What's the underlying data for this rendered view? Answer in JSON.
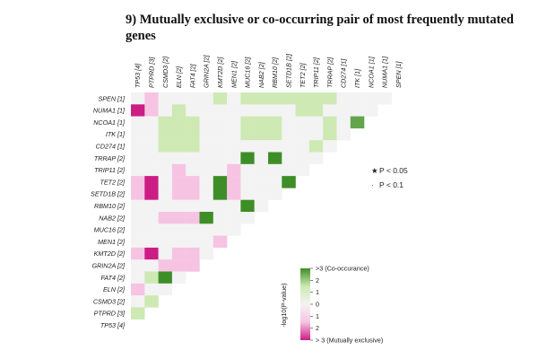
{
  "title": "9) Mutually exclusive or co-occurring pair of  most frequently mutated genes",
  "chart_data": {
    "type": "heatmap",
    "title": "9) Mutually exclusive or co-occurring pair of  most frequently mutated genes",
    "columns": [
      "TP53 [4]",
      "PTPRD [3]",
      "CSMD3 [2]",
      "ELN [2]",
      "FAT4 [2]",
      "GRIN2A [2]",
      "KMT2D [2]",
      "MEN1 [2]",
      "MUC16 [2]",
      "NAB2 [2]",
      "RBM10 [2]",
      "SETD1B [2]",
      "TET2 [2]",
      "TRIP11 [2]",
      "TRRAP [2]",
      "CD274 [1]",
      "ITK [1]",
      "NCOA1 [1]",
      "NUMA1 [1]",
      "SPEN [1]"
    ],
    "rows": [
      "SPEN [1]",
      "NUMA1 [1]",
      "NCOA1 [1]",
      "ITK [1]",
      "CD274 [1]",
      "TRRAP [2]",
      "TRIP11 [2]",
      "TET2 [2]",
      "SETD1B [2]",
      "RBM10 [2]",
      "NAB2 [2]",
      "MUC16 [2]",
      "MEN1 [2]",
      "KMT2D [2]",
      "GRIN2A [2]",
      "FAT4 [2]",
      "ELN [2]",
      "CSMD3 [2]",
      "PTPRD [3]",
      "TP53 [4]"
    ],
    "cells": [
      [
        0,
        0,
        0
      ],
      [
        0,
        1,
        -1
      ],
      [
        0,
        2,
        0
      ],
      [
        0,
        3,
        0
      ],
      [
        0,
        4,
        0
      ],
      [
        0,
        5,
        0
      ],
      [
        0,
        6,
        1
      ],
      [
        0,
        7,
        0
      ],
      [
        0,
        8,
        1
      ],
      [
        0,
        9,
        1
      ],
      [
        0,
        10,
        1
      ],
      [
        0,
        11,
        1
      ],
      [
        0,
        12,
        1
      ],
      [
        0,
        13,
        1
      ],
      [
        0,
        14,
        1
      ],
      [
        0,
        15,
        0
      ],
      [
        0,
        16,
        0
      ],
      [
        0,
        17,
        0
      ],
      [
        0,
        18,
        0
      ],
      [
        1,
        0,
        -4
      ],
      [
        1,
        1,
        -1
      ],
      [
        1,
        2,
        0
      ],
      [
        1,
        3,
        1
      ],
      [
        1,
        4,
        0
      ],
      [
        1,
        5,
        0
      ],
      [
        1,
        6,
        0
      ],
      [
        1,
        7,
        0
      ],
      [
        1,
        8,
        0
      ],
      [
        1,
        9,
        0
      ],
      [
        1,
        10,
        0
      ],
      [
        1,
        11,
        0
      ],
      [
        1,
        12,
        1
      ],
      [
        1,
        13,
        1
      ],
      [
        1,
        14,
        0
      ],
      [
        1,
        15,
        0
      ],
      [
        1,
        16,
        0
      ],
      [
        1,
        17,
        0
      ],
      [
        2,
        0,
        0
      ],
      [
        2,
        1,
        0
      ],
      [
        2,
        2,
        1
      ],
      [
        2,
        3,
        1
      ],
      [
        2,
        4,
        1
      ],
      [
        2,
        5,
        0
      ],
      [
        2,
        6,
        0
      ],
      [
        2,
        7,
        0
      ],
      [
        2,
        8,
        1
      ],
      [
        2,
        9,
        1
      ],
      [
        2,
        10,
        1
      ],
      [
        2,
        11,
        0
      ],
      [
        2,
        12,
        0
      ],
      [
        2,
        13,
        0
      ],
      [
        2,
        14,
        1
      ],
      [
        2,
        15,
        0
      ],
      [
        2,
        16,
        2.5
      ],
      [
        3,
        0,
        0
      ],
      [
        3,
        1,
        0
      ],
      [
        3,
        2,
        1
      ],
      [
        3,
        3,
        1
      ],
      [
        3,
        4,
        1
      ],
      [
        3,
        5,
        0
      ],
      [
        3,
        6,
        0
      ],
      [
        3,
        7,
        0
      ],
      [
        3,
        8,
        1
      ],
      [
        3,
        9,
        1
      ],
      [
        3,
        10,
        1
      ],
      [
        3,
        11,
        0
      ],
      [
        3,
        12,
        0
      ],
      [
        3,
        13,
        0
      ],
      [
        3,
        14,
        1
      ],
      [
        3,
        15,
        0
      ],
      [
        4,
        0,
        0
      ],
      [
        4,
        1,
        0
      ],
      [
        4,
        2,
        1
      ],
      [
        4,
        3,
        1
      ],
      [
        4,
        4,
        1
      ],
      [
        4,
        5,
        0
      ],
      [
        4,
        6,
        0
      ],
      [
        4,
        7,
        0
      ],
      [
        4,
        8,
        0
      ],
      [
        4,
        9,
        0
      ],
      [
        4,
        10,
        0
      ],
      [
        4,
        11,
        0
      ],
      [
        4,
        12,
        0
      ],
      [
        4,
        13,
        1
      ],
      [
        4,
        14,
        0
      ],
      [
        5,
        0,
        0
      ],
      [
        5,
        1,
        0
      ],
      [
        5,
        2,
        0
      ],
      [
        5,
        3,
        0
      ],
      [
        5,
        4,
        0
      ],
      [
        5,
        5,
        0
      ],
      [
        5,
        6,
        0
      ],
      [
        5,
        7,
        0
      ],
      [
        5,
        8,
        3
      ],
      [
        5,
        9,
        0
      ],
      [
        5,
        10,
        3
      ],
      [
        5,
        11,
        0
      ],
      [
        5,
        12,
        0
      ],
      [
        5,
        13,
        0
      ],
      [
        6,
        0,
        0
      ],
      [
        6,
        1,
        0
      ],
      [
        6,
        2,
        0
      ],
      [
        6,
        3,
        -1
      ],
      [
        6,
        4,
        0
      ],
      [
        6,
        5,
        0
      ],
      [
        6,
        6,
        0
      ],
      [
        6,
        7,
        -1
      ],
      [
        6,
        8,
        0
      ],
      [
        6,
        9,
        0
      ],
      [
        6,
        10,
        0
      ],
      [
        6,
        11,
        0
      ],
      [
        6,
        12,
        0
      ],
      [
        7,
        0,
        -1
      ],
      [
        7,
        1,
        -4
      ],
      [
        7,
        2,
        0
      ],
      [
        7,
        3,
        -1
      ],
      [
        7,
        4,
        -1
      ],
      [
        7,
        5,
        0
      ],
      [
        7,
        6,
        3
      ],
      [
        7,
        7,
        -1
      ],
      [
        7,
        8,
        0
      ],
      [
        7,
        9,
        0
      ],
      [
        7,
        10,
        0
      ],
      [
        7,
        11,
        3
      ],
      [
        8,
        0,
        -1
      ],
      [
        8,
        1,
        -4
      ],
      [
        8,
        2,
        0
      ],
      [
        8,
        3,
        -1
      ],
      [
        8,
        4,
        -1
      ],
      [
        8,
        5,
        0
      ],
      [
        8,
        6,
        3
      ],
      [
        8,
        7,
        -1
      ],
      [
        8,
        8,
        0
      ],
      [
        8,
        9,
        0
      ],
      [
        8,
        10,
        0
      ],
      [
        9,
        0,
        0
      ],
      [
        9,
        1,
        0
      ],
      [
        9,
        2,
        0
      ],
      [
        9,
        3,
        0
      ],
      [
        9,
        4,
        0
      ],
      [
        9,
        5,
        0
      ],
      [
        9,
        6,
        0
      ],
      [
        9,
        7,
        0
      ],
      [
        9,
        8,
        3
      ],
      [
        9,
        9,
        0
      ],
      [
        10,
        0,
        0
      ],
      [
        10,
        1,
        0
      ],
      [
        10,
        2,
        -1
      ],
      [
        10,
        3,
        -1
      ],
      [
        10,
        4,
        -1
      ],
      [
        10,
        5,
        3
      ],
      [
        10,
        6,
        0
      ],
      [
        10,
        7,
        0
      ],
      [
        10,
        8,
        0
      ],
      [
        11,
        0,
        0
      ],
      [
        11,
        1,
        0
      ],
      [
        11,
        2,
        0
      ],
      [
        11,
        3,
        0
      ],
      [
        11,
        4,
        0
      ],
      [
        11,
        5,
        0
      ],
      [
        11,
        6,
        0
      ],
      [
        11,
        7,
        0
      ],
      [
        12,
        0,
        0
      ],
      [
        12,
        1,
        0
      ],
      [
        12,
        2,
        0
      ],
      [
        12,
        3,
        0
      ],
      [
        12,
        4,
        0
      ],
      [
        12,
        5,
        0
      ],
      [
        12,
        6,
        -1
      ],
      [
        13,
        0,
        -1
      ],
      [
        13,
        1,
        -4
      ],
      [
        13,
        2,
        0
      ],
      [
        13,
        3,
        -1
      ],
      [
        13,
        4,
        -1
      ],
      [
        13,
        5,
        0
      ],
      [
        14,
        0,
        0
      ],
      [
        14,
        1,
        0
      ],
      [
        14,
        2,
        -1
      ],
      [
        14,
        3,
        -1
      ],
      [
        14,
        4,
        -1
      ],
      [
        15,
        0,
        0
      ],
      [
        15,
        1,
        1
      ],
      [
        15,
        2,
        3
      ],
      [
        15,
        3,
        0
      ],
      [
        16,
        0,
        -1
      ],
      [
        16,
        1,
        0
      ],
      [
        16,
        2,
        0
      ],
      [
        17,
        0,
        0
      ],
      [
        17,
        1,
        1
      ],
      [
        18,
        0,
        1
      ]
    ],
    "significance": [
      {
        "symbol": "★",
        "label": "P < 0.05"
      },
      {
        "symbol": "·",
        "label": "P < 0.1"
      }
    ],
    "colorbar": {
      "label": "-log10(P-value)",
      "ticks": [
        ">3 (Co-occurance)",
        "2",
        "1",
        "0",
        "1",
        "2",
        "> 3 (Mutually exclusive)"
      ],
      "colors": [
        "#3e8e27",
        "#cde9b3",
        "#f3f3f3",
        "#f6c3e2",
        "#cc1d85"
      ]
    }
  }
}
